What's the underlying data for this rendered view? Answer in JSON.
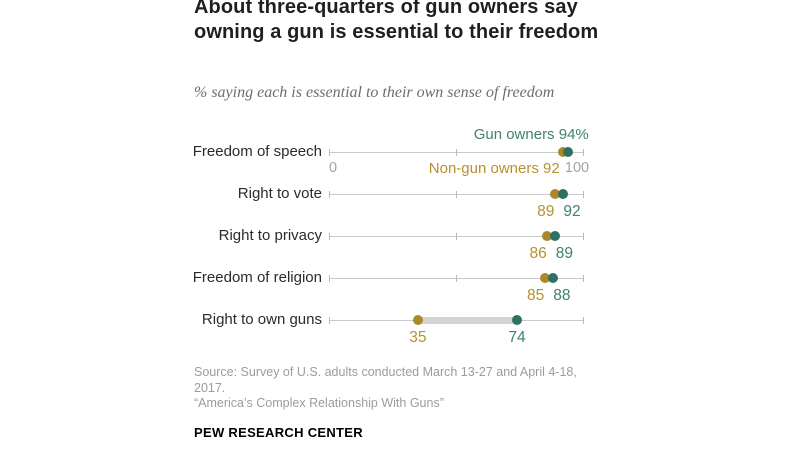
{
  "header": {
    "title": "About three-quarters of gun owners say owning a gun is essential to their freedom",
    "subtitle": "% saying each is essential to their own sense of freedom"
  },
  "chart_data": {
    "type": "scatter",
    "subtype": "dot-plot",
    "title": "About three-quarters of gun owners say owning a gun is essential to their freedom",
    "categories": [
      "Freedom of speech",
      "Right to vote",
      "Right to privacy",
      "Freedom of religion",
      "Right to own guns"
    ],
    "series": [
      {
        "name": "Gun owners",
        "values": [
          94,
          92,
          89,
          88,
          74
        ]
      },
      {
        "name": "Non-gun owners",
        "values": [
          92,
          89,
          86,
          85,
          35
        ]
      }
    ],
    "axis": {
      "min": 0,
      "max": 100,
      "ticks": [
        0,
        50,
        100
      ],
      "min_label": "0",
      "max_label": "100"
    },
    "legend": {
      "position": "first-row-inline",
      "gun_owners_suffix": "%"
    },
    "grid": false
  },
  "colors": {
    "gun_owners_dot": "#2e7164",
    "gun_owners_text": "#3e8172",
    "non_gun_owners_dot": "#ad882b",
    "non_gun_owners_text": "#b6912e",
    "axis_line": "#c9c9c9",
    "axis_tick": "#b9b9b9",
    "connector": "#d4d4d4",
    "axis_label": "#a3a3a3"
  },
  "footer": {
    "source": "Source: Survey of U.S. adults conducted March 13-27 and April 4-18, 2017.",
    "note": "“America’s Complex Relationship With Guns”",
    "brand": "PEW RESEARCH CENTER"
  }
}
